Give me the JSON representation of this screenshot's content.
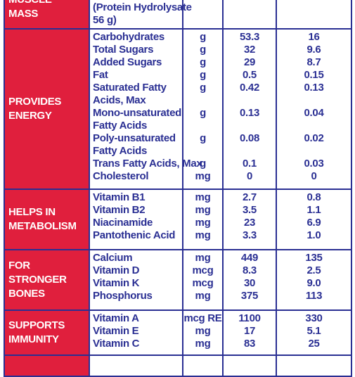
{
  "groups": [
    {
      "category": "MUSCLE MASS",
      "rows": [
        {
          "nutrient": [
            "(Protein Hydrolysate",
            "56 g)"
          ],
          "unit": "",
          "per_100": "",
          "per_serving": ""
        }
      ]
    },
    {
      "category": "PROVIDES ENERGY",
      "rows": [
        {
          "nutrient": [
            "Carbohydrates"
          ],
          "unit": "g",
          "per_100": "53.3",
          "per_serving": "16"
        },
        {
          "nutrient": [
            "Total Sugars"
          ],
          "unit": "g",
          "per_100": "32",
          "per_serving": "9.6"
        },
        {
          "nutrient": [
            "Added Sugars"
          ],
          "unit": "g",
          "per_100": "29",
          "per_serving": "8.7"
        },
        {
          "nutrient": [
            "Fat"
          ],
          "unit": "g",
          "per_100": "0.5",
          "per_serving": "0.15"
        },
        {
          "nutrient": [
            "Saturated Fatty",
            "Acids, Max"
          ],
          "unit": "g",
          "per_100": "0.42",
          "per_serving": "0.13"
        },
        {
          "nutrient": [
            "Mono-unsaturated",
            "Fatty Acids"
          ],
          "unit": "g",
          "per_100": "0.13",
          "per_serving": "0.04"
        },
        {
          "nutrient": [
            "Poly-unsaturated",
            "Fatty Acids"
          ],
          "unit": "g",
          "per_100": "0.08",
          "per_serving": "0.02"
        },
        {
          "nutrient": [
            "Trans Fatty Acids, Max"
          ],
          "unit": "g",
          "per_100": "0.1",
          "per_serving": "0.03"
        },
        {
          "nutrient": [
            "Cholesterol"
          ],
          "unit": "mg",
          "per_100": "0",
          "per_serving": "0"
        }
      ]
    },
    {
      "category": "HELPS IN METABOLISM",
      "rows": [
        {
          "nutrient": [
            "Vitamin B1"
          ],
          "unit": "mg",
          "per_100": "2.7",
          "per_serving": "0.8"
        },
        {
          "nutrient": [
            "Vitamin B2"
          ],
          "unit": "mg",
          "per_100": "3.5",
          "per_serving": "1.1"
        },
        {
          "nutrient": [
            "Niacinamide"
          ],
          "unit": "mg",
          "per_100": "23",
          "per_serving": "6.9"
        },
        {
          "nutrient": [
            "Pantothenic Acid"
          ],
          "unit": "mg",
          "per_100": "3.3",
          "per_serving": "1.0"
        }
      ]
    },
    {
      "category": "FOR STRONGER BONES",
      "rows": [
        {
          "nutrient": [
            "Calcium"
          ],
          "unit": "mg",
          "per_100": "449",
          "per_serving": "135"
        },
        {
          "nutrient": [
            "Vitamin D"
          ],
          "unit": "mcg",
          "per_100": "8.3",
          "per_serving": "2.5"
        },
        {
          "nutrient": [
            "Vitamin K"
          ],
          "unit": "mcg",
          "per_100": "30",
          "per_serving": "9.0"
        },
        {
          "nutrient": [
            "Phosphorus"
          ],
          "unit": "mg",
          "per_100": "375",
          "per_serving": "113"
        }
      ]
    },
    {
      "category": "SUPPORTS IMMUNITY",
      "rows": [
        {
          "nutrient": [
            "Vitamin A"
          ],
          "unit": "mcg RE",
          "per_100": "1100",
          "per_serving": "330"
        },
        {
          "nutrient": [
            "Vitamin E"
          ],
          "unit": "mg",
          "per_100": "17",
          "per_serving": "5.1"
        },
        {
          "nutrient": [
            "Vitamin C"
          ],
          "unit": "mg",
          "per_100": "83",
          "per_serving": "25"
        }
      ]
    },
    {
      "category": "",
      "rows": [
        {
          "nutrient": [
            ""
          ],
          "unit": "",
          "per_100": "",
          "per_serving": ""
        }
      ]
    }
  ],
  "colors": {
    "category_bg": "#e01f3d",
    "text_blue": "#2a2f93",
    "border": "#2a2f93"
  }
}
